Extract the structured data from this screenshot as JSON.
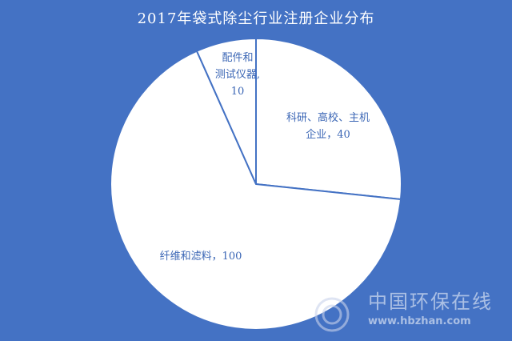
{
  "chart_data": {
    "type": "pie",
    "title": "2017年袋式除尘行业注册企业分布",
    "start_angle": "12 o'clock",
    "direction": "clockwise",
    "slices": [
      {
        "label": "科研、高校、主机企业",
        "value": 40,
        "data_label": "科研、高校、主机企业，40"
      },
      {
        "label": "纤维和滤料",
        "value": 100,
        "data_label": "纤维和滤料，100"
      },
      {
        "label": "配件和测试仪器",
        "value": 10,
        "data_label": "配件和测试仪器，10"
      }
    ],
    "colors": {
      "background": "#4472c4",
      "slice_fill": "#ffffff",
      "slice_border": "#4472c4",
      "label_text": "#3b66b5",
      "title_text": "#ffffff"
    }
  },
  "labels": {
    "s0_line1": "科研、高校、主机",
    "s0_line2": "企业，40",
    "s1_line1": "纤维和滤料，100",
    "s2_line1": "配件和",
    "s2_line2": "测试仪器,",
    "s2_line3": "10"
  },
  "watermark": {
    "name": "中国环保在线",
    "url": "www.hbzhan.com"
  }
}
